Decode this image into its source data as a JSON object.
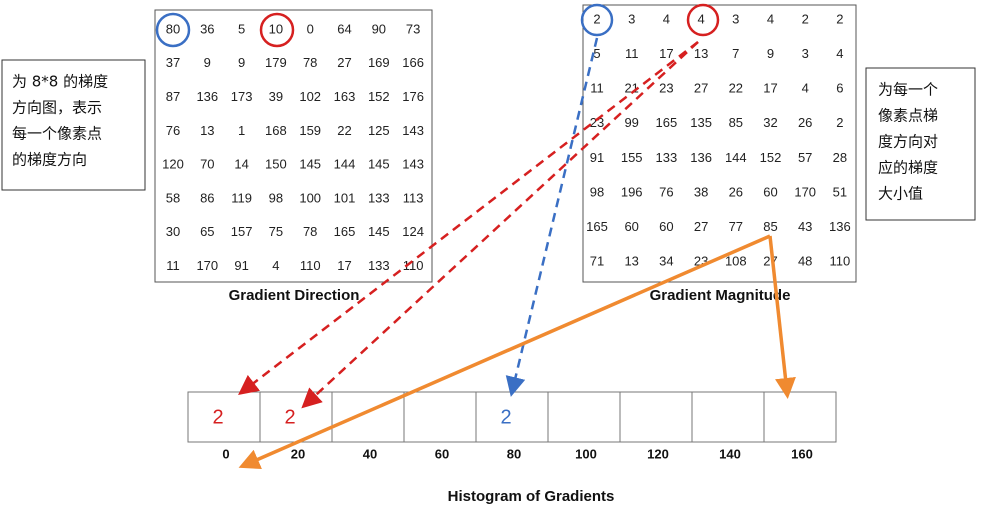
{
  "direction": {
    "caption": "Gradient Direction",
    "rows": [
      [
        80,
        36,
        5,
        10,
        0,
        64,
        90,
        73
      ],
      [
        37,
        9,
        9,
        179,
        78,
        27,
        169,
        166
      ],
      [
        87,
        136,
        173,
        39,
        102,
        163,
        152,
        176
      ],
      [
        76,
        13,
        1,
        168,
        159,
        22,
        125,
        143
      ],
      [
        120,
        70,
        14,
        150,
        145,
        144,
        145,
        143
      ],
      [
        58,
        86,
        119,
        98,
        100,
        101,
        133,
        113
      ],
      [
        30,
        65,
        157,
        75,
        78,
        165,
        145,
        124
      ],
      [
        11,
        170,
        91,
        4,
        110,
        17,
        133,
        110
      ]
    ]
  },
  "magnitude": {
    "caption": "Gradient Magnitude",
    "rows": [
      [
        2,
        3,
        4,
        4,
        3,
        4,
        2,
        2
      ],
      [
        5,
        11,
        17,
        13,
        7,
        9,
        3,
        4
      ],
      [
        11,
        21,
        23,
        27,
        22,
        17,
        4,
        6
      ],
      [
        23,
        99,
        165,
        135,
        85,
        32,
        26,
        2
      ],
      [
        91,
        155,
        133,
        136,
        144,
        152,
        57,
        28
      ],
      [
        98,
        196,
        76,
        38,
        26,
        60,
        170,
        51
      ],
      [
        165,
        60,
        60,
        27,
        77,
        85,
        43,
        136
      ],
      [
        71,
        13,
        34,
        23,
        108,
        27,
        48,
        110
      ]
    ]
  },
  "left_note": [
    "为 8*8 的梯度",
    "方向图，表示",
    "每一个像素点",
    "的梯度方向"
  ],
  "right_note": [
    "为每一个",
    "像素点梯",
    "度方向对",
    "应的梯度",
    "大小值"
  ],
  "histogram": {
    "title": "Histogram of Gradients",
    "bins": [
      0,
      20,
      40,
      60,
      80,
      100,
      120,
      140,
      160
    ],
    "counts": [
      2,
      2,
      null,
      null,
      2,
      null,
      null,
      null,
      null
    ],
    "count_colors": [
      "#d62020",
      "#d62020",
      null,
      null,
      "#3a6fc4",
      null,
      null,
      null,
      null
    ]
  }
}
